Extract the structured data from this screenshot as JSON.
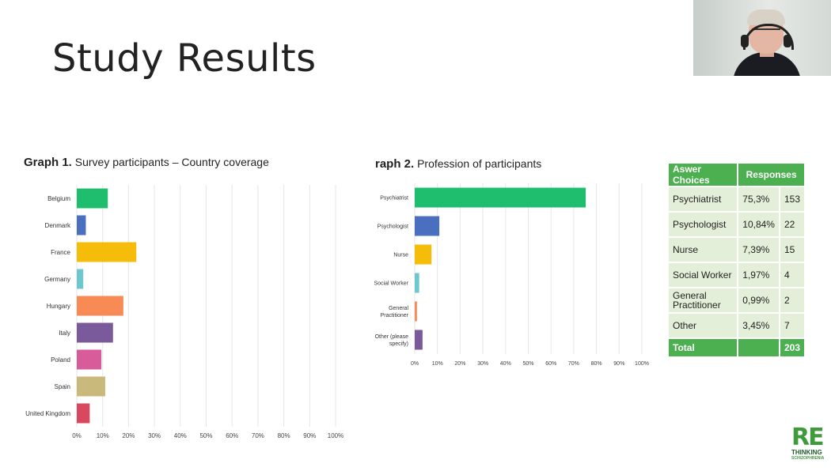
{
  "slide": {
    "title": "Study Results"
  },
  "video": {
    "participant": "presenter"
  },
  "graph1": {
    "title_bold": "Graph 1.",
    "title_rest": " Survey participants – Country coverage"
  },
  "graph2": {
    "title_bold": "raph 2.",
    "title_rest": " Profession of participants"
  },
  "chart_data": [
    {
      "type": "bar",
      "orientation": "horizontal",
      "categories": [
        "Belgium",
        "Denmark",
        "France",
        "Germany",
        "Hungary",
        "Italy",
        "Poland",
        "Spain",
        "United Kingdom"
      ],
      "values": [
        12,
        3.5,
        23,
        2.5,
        18,
        14,
        9.5,
        11,
        5
      ],
      "colors": [
        "#1ebe6e",
        "#4a6fbe",
        "#f5bd0a",
        "#6cc7d1",
        "#f78a55",
        "#7a5a9a",
        "#d95c9a",
        "#c9b97a",
        "#d9485f"
      ],
      "xlim": [
        0,
        100
      ],
      "xticks": [
        "0%",
        "10%",
        "20%",
        "30%",
        "40%",
        "50%",
        "60%",
        "70%",
        "80%",
        "90%",
        "100%"
      ],
      "grid": true
    },
    {
      "type": "bar",
      "orientation": "horizontal",
      "categories": [
        "Psychiatrist",
        "Psychologist",
        "Nurse",
        "Social Worker",
        "General Practitioner",
        "Other (please specify)"
      ],
      "values": [
        75.3,
        10.84,
        7.39,
        1.97,
        0.99,
        3.45
      ],
      "colors": [
        "#1ebe6e",
        "#4a6fbe",
        "#f5bd0a",
        "#6cc7d1",
        "#f78a55",
        "#7a5a9a"
      ],
      "xlim": [
        0,
        100
      ],
      "xticks": [
        "0%",
        "10%",
        "20%",
        "30%",
        "40%",
        "50%",
        "60%",
        "70%",
        "80%",
        "90%",
        "100%"
      ],
      "grid": true
    }
  ],
  "table": {
    "header_choices": "Aswer Choices",
    "header_responses": "Responses",
    "rows": [
      {
        "choice": "Psychiatrist",
        "percent": "75,3%",
        "count": "153"
      },
      {
        "choice": "Psychologist",
        "percent": "10,84%",
        "count": "22"
      },
      {
        "choice": "Nurse",
        "percent": "7,39%",
        "count": "15"
      },
      {
        "choice": "Social Worker",
        "percent": "1,97%",
        "count": "4"
      },
      {
        "choice": "General Practitioner",
        "percent": "0,99%",
        "count": "2"
      },
      {
        "choice": "Other",
        "percent": "3,45%",
        "count": "7"
      }
    ],
    "total_label": "Total",
    "total_count": "203"
  },
  "logo": {
    "line1": "RE",
    "line2": "THINKING",
    "line3": "SCHIZOPHRENIA"
  }
}
